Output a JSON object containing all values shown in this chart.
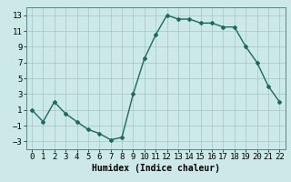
{
  "x": [
    0,
    1,
    2,
    3,
    4,
    5,
    6,
    7,
    8,
    9,
    10,
    11,
    12,
    13,
    14,
    15,
    16,
    17,
    18,
    19,
    20,
    21,
    22
  ],
  "y": [
    1,
    -0.5,
    2,
    0.5,
    -0.5,
    -1.5,
    -2,
    -2.8,
    -2.5,
    3,
    7.5,
    10.5,
    13,
    12.5,
    12.5,
    12,
    12,
    11.5,
    11.5,
    9,
    7,
    4,
    2
  ],
  "line_color": "#1a6b5a",
  "marker": "D",
  "marker_size": 2,
  "bg_color": "#cce8e8",
  "grid_color": "#a0c8c8",
  "xlabel": "Humidex (Indice chaleur)",
  "xlabel_fontsize": 7,
  "tick_fontsize": 6.5,
  "ylim": [
    -4,
    14
  ],
  "yticks": [
    -3,
    -1,
    1,
    3,
    5,
    7,
    9,
    11,
    13
  ],
  "xticks": [
    0,
    1,
    2,
    3,
    4,
    5,
    6,
    7,
    8,
    9,
    10,
    11,
    12,
    13,
    14,
    15,
    16,
    17,
    18,
    19,
    20,
    21,
    22
  ],
  "xlim": [
    -0.5,
    22.5
  ]
}
